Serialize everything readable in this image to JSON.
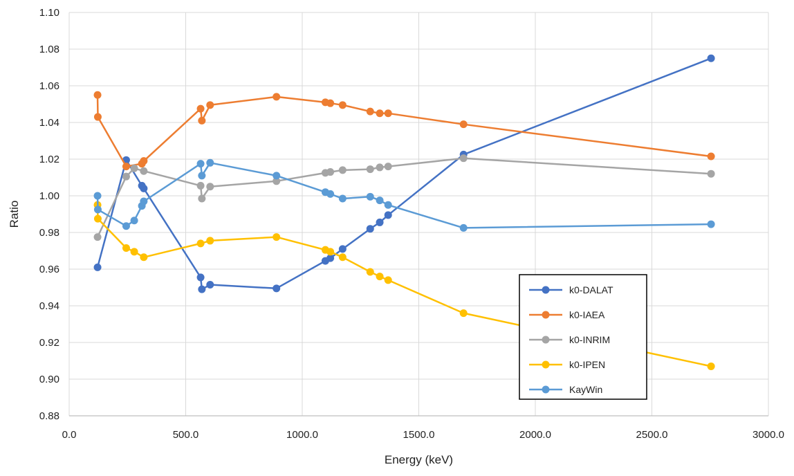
{
  "chart_data": {
    "type": "line",
    "title": "",
    "xlabel": "Energy (keV)",
    "ylabel": "Ratio",
    "xlim": [
      0,
      3000
    ],
    "ylim": [
      0.88,
      1.1
    ],
    "xticks": [
      "0.0",
      "500.0",
      "1000.0",
      "1500.0",
      "2000.0",
      "2500.0",
      "3000.0"
    ],
    "xtick_values": [
      0,
      500,
      1000,
      1500,
      2000,
      2500,
      3000
    ],
    "yticks": [
      "0.88",
      "0.90",
      "0.92",
      "0.94",
      "0.96",
      "0.98",
      "1.00",
      "1.02",
      "1.04",
      "1.06",
      "1.08",
      "1.10"
    ],
    "ytick_values": [
      0.88,
      0.9,
      0.92,
      0.94,
      0.96,
      0.98,
      1.0,
      1.02,
      1.04,
      1.06,
      1.08,
      1.1
    ],
    "grid": "on",
    "legend_position": "lower-right",
    "series": [
      {
        "name": "k0-DALAT",
        "color": "#4472C4",
        "points": [
          [
            121.8,
            0.961
          ],
          [
            244.7,
            1.0195
          ],
          [
            311.9,
            1.0055
          ],
          [
            320.1,
            1.004
          ],
          [
            564.0,
            0.9555
          ],
          [
            569.3,
            0.949
          ],
          [
            604.7,
            0.9515
          ],
          [
            889.3,
            0.9495
          ],
          [
            1099.2,
            0.9645
          ],
          [
            1120.5,
            0.966
          ],
          [
            1173.2,
            0.971
          ],
          [
            1291.6,
            0.982
          ],
          [
            1332.5,
            0.9855
          ],
          [
            1368.6,
            0.9895
          ],
          [
            1692.0,
            1.0225
          ],
          [
            2754.0,
            1.075
          ]
        ]
      },
      {
        "name": "k0-IAEA",
        "color": "#ED7D31",
        "points": [
          [
            121.8,
            1.055
          ],
          [
            123.0,
            1.043
          ],
          [
            244.7,
            1.016
          ],
          [
            311.9,
            1.0175
          ],
          [
            320.1,
            1.019
          ],
          [
            564.0,
            1.0475
          ],
          [
            569.3,
            1.041
          ],
          [
            604.7,
            1.0495
          ],
          [
            889.3,
            1.054
          ],
          [
            1099.2,
            1.051
          ],
          [
            1120.5,
            1.0505
          ],
          [
            1173.2,
            1.0495
          ],
          [
            1291.6,
            1.046
          ],
          [
            1332.5,
            1.045
          ],
          [
            1368.6,
            1.045
          ],
          [
            1692.0,
            1.039
          ],
          [
            2754.0,
            1.0215
          ]
        ]
      },
      {
        "name": "k0-INRIM",
        "color": "#A5A5A5",
        "points": [
          [
            121.8,
            0.9775
          ],
          [
            244.7,
            1.0105
          ],
          [
            279.2,
            1.015
          ],
          [
            320.1,
            1.0135
          ],
          [
            564.0,
            1.0055
          ],
          [
            569.3,
            0.9985
          ],
          [
            604.7,
            1.005
          ],
          [
            889.3,
            1.008
          ],
          [
            1099.2,
            1.0125
          ],
          [
            1120.5,
            1.013
          ],
          [
            1173.2,
            1.014
          ],
          [
            1291.6,
            1.0145
          ],
          [
            1332.5,
            1.0155
          ],
          [
            1368.6,
            1.016
          ],
          [
            1692.0,
            1.0205
          ],
          [
            2754.0,
            1.012
          ]
        ]
      },
      {
        "name": "k0-IPEN",
        "color": "#FFC000",
        "points": [
          [
            121.8,
            0.995
          ],
          [
            123.0,
            0.9875
          ],
          [
            244.7,
            0.9715
          ],
          [
            279.2,
            0.9695
          ],
          [
            320.1,
            0.9665
          ],
          [
            564.0,
            0.974
          ],
          [
            604.7,
            0.9755
          ],
          [
            889.3,
            0.9775
          ],
          [
            1099.2,
            0.9705
          ],
          [
            1120.5,
            0.9695
          ],
          [
            1173.2,
            0.9665
          ],
          [
            1291.6,
            0.9585
          ],
          [
            1332.5,
            0.956
          ],
          [
            1368.6,
            0.954
          ],
          [
            1692.0,
            0.936
          ],
          [
            2754.0,
            0.907
          ]
        ]
      },
      {
        "name": "KayWin",
        "color": "#5B9BD5",
        "points": [
          [
            121.8,
            1.0
          ],
          [
            123.0,
            0.9925
          ],
          [
            244.7,
            0.9835
          ],
          [
            279.2,
            0.9865
          ],
          [
            311.9,
            0.9945
          ],
          [
            320.1,
            0.997
          ],
          [
            564.0,
            1.0175
          ],
          [
            569.3,
            1.011
          ],
          [
            604.7,
            1.018
          ],
          [
            889.3,
            1.011
          ],
          [
            1099.2,
            1.002
          ],
          [
            1120.5,
            1.001
          ],
          [
            1173.2,
            0.9985
          ],
          [
            1291.6,
            0.9995
          ],
          [
            1332.5,
            0.9975
          ],
          [
            1368.6,
            0.995
          ],
          [
            1692.0,
            0.9825
          ],
          [
            2754.0,
            0.9845
          ]
        ]
      }
    ]
  }
}
